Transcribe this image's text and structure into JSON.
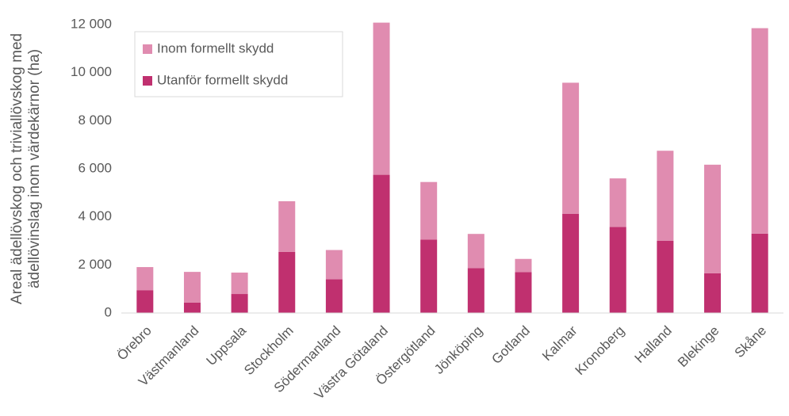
{
  "chart_data": {
    "type": "stacked_bar",
    "ylabel": [
      "Areal ädellövskog och triviallövskog med",
      "ädellövinslag inom värdekärnor (ha)"
    ],
    "categories": [
      "Örebro",
      "Västmanland",
      "Uppsala",
      "Stockholm",
      "Södermanland",
      "Västra Götaland",
      "Östergötland",
      "Jönköping",
      "Gotland",
      "Kalmar",
      "Kronoberg",
      "Halland",
      "Blekinge",
      "Skåne"
    ],
    "series": [
      {
        "name": "Utanför formellt skydd",
        "color": "#c0306f",
        "values": [
          950,
          430,
          790,
          2540,
          1400,
          5750,
          3050,
          1870,
          1700,
          4130,
          3580,
          3000,
          1650,
          3300
        ]
      },
      {
        "name": "Inom formellt skydd",
        "color": "#e08cb0",
        "values": [
          960,
          1280,
          890,
          2110,
          1220,
          6330,
          2400,
          1420,
          550,
          5450,
          2020,
          3750,
          4520,
          8550
        ]
      }
    ],
    "ylim": [
      0,
      12000
    ],
    "yticks": [
      0,
      {
        "value": 2000,
        "label": "2 000"
      },
      {
        "value": 4000,
        "label": "4 000"
      },
      {
        "value": 6000,
        "label": "6 000"
      },
      {
        "value": 8000,
        "label": "8 000"
      },
      {
        "value": 10000,
        "label": "10 000"
      },
      {
        "value": 12000,
        "label": "12 000"
      }
    ],
    "grid": false,
    "legend": "top-left"
  }
}
